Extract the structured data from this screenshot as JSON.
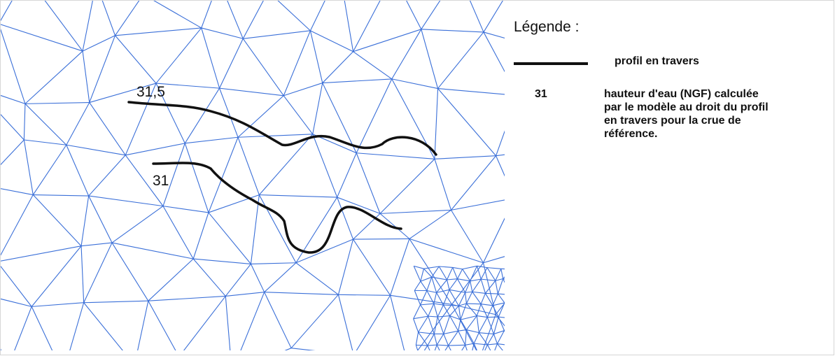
{
  "map": {
    "mesh_color": "#3a6fd8",
    "profile_color": "#111111",
    "profiles": [
      {
        "label": "31,5"
      },
      {
        "label": "31"
      }
    ]
  },
  "legend": {
    "title": "Légende :",
    "profile_label": "profil en travers",
    "height_sample": "31",
    "height_label_lines": [
      "hauteur   d'eau (NGF) calculée",
      "par le modèle au droit du profil",
      "en travers pour la crue de",
      "référence."
    ]
  }
}
